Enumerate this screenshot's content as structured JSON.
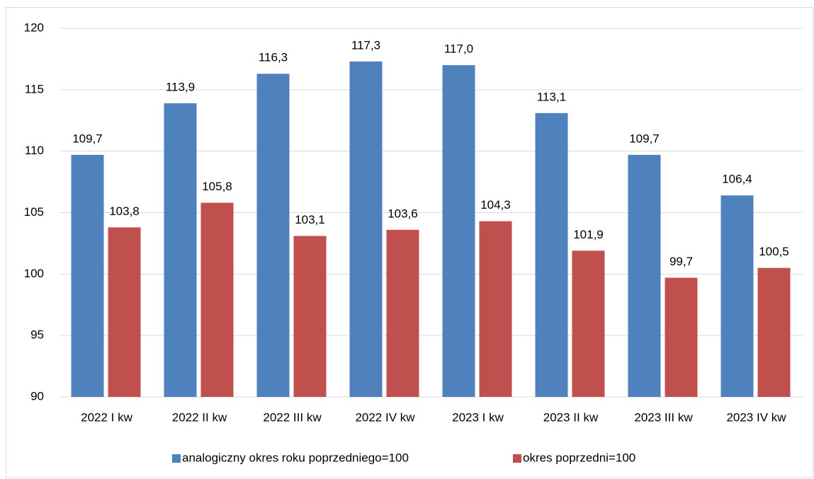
{
  "chart_data": {
    "type": "bar",
    "categories": [
      "2022 I kw",
      "2022 II kw",
      "2022 III kw",
      "2022 IV kw",
      "2023 I kw",
      "2023 II kw",
      "2023 III kw",
      "2023 IV kw"
    ],
    "series": [
      {
        "name": "analogiczny okres roku poprzedniego=100",
        "color": "#4f81bd",
        "values": [
          109.7,
          113.9,
          116.3,
          117.3,
          117.0,
          113.1,
          109.7,
          106.4
        ],
        "value_labels": [
          "109,7",
          "113,9",
          "116,3",
          "117,3",
          "117,0",
          "113,1",
          "109,7",
          "106,4"
        ]
      },
      {
        "name": "okres poprzedni=100",
        "color": "#c0504d",
        "values": [
          103.8,
          105.8,
          103.1,
          103.6,
          104.3,
          101.9,
          99.7,
          100.5
        ],
        "value_labels": [
          "103,8",
          "105,8",
          "103,1",
          "103,6",
          "104,3",
          "101,9",
          "99,7",
          "100,5"
        ]
      }
    ],
    "ylim": [
      90,
      120
    ],
    "yticks": [
      90,
      95,
      100,
      105,
      110,
      115,
      120
    ],
    "grid": true,
    "legend": "bottom"
  }
}
